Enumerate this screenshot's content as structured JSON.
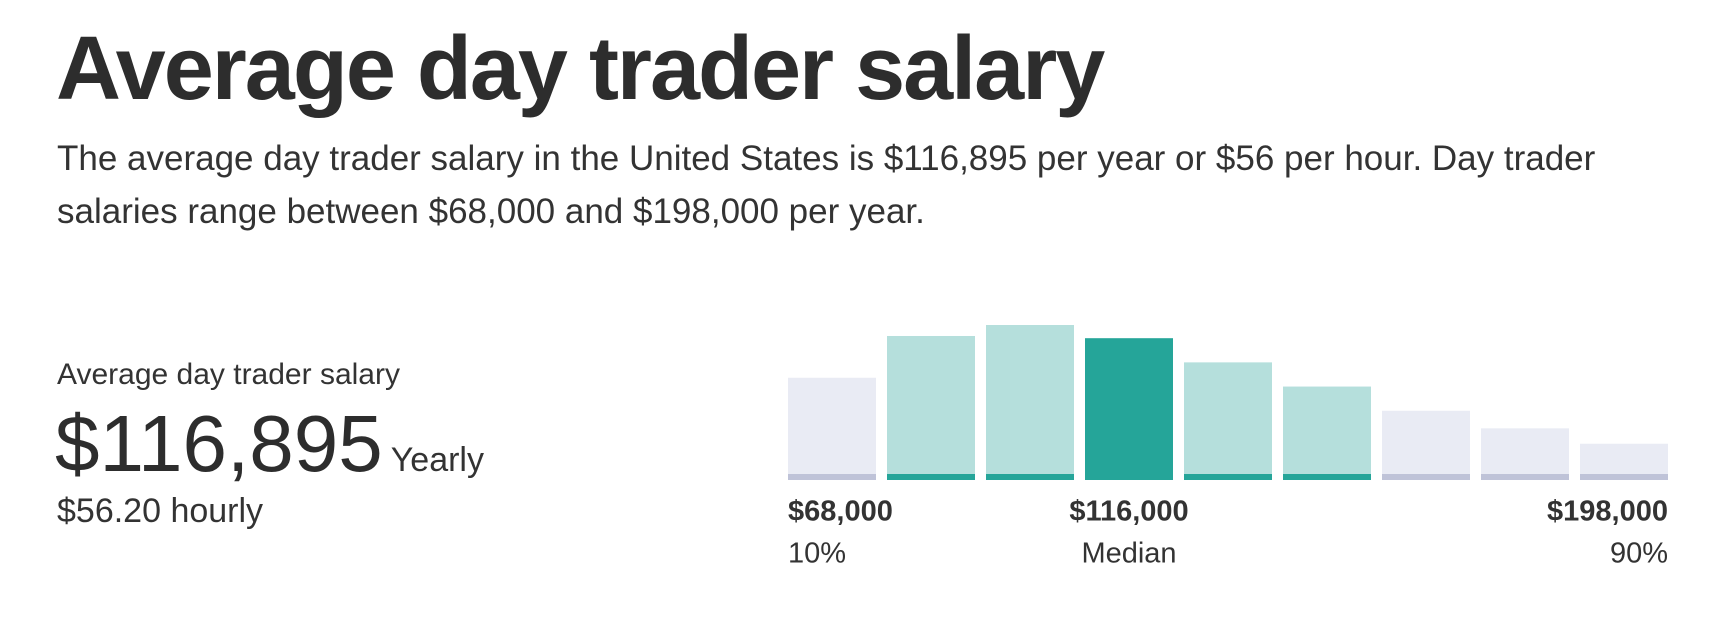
{
  "header": {
    "title": "Average day trader salary",
    "description": "The average day trader salary in the United States is $116,895 per year or $56 per hour. Day trader salaries range between $68,000 and $198,000 per year."
  },
  "summary": {
    "label": "Average day trader salary",
    "amount": "$116,895",
    "period": "Yearly",
    "hourly": "$56.20 hourly"
  },
  "chart_data": {
    "type": "bar",
    "values": [
      93,
      131,
      141,
      129,
      107,
      85,
      63,
      47,
      33
    ],
    "colors": [
      "#e9ebf4",
      "#b5dfdc",
      "#b5dfdc",
      "#25a599",
      "#b5dfdc",
      "#b5dfdc",
      "#e9ebf4",
      "#e9ebf4",
      "#e9ebf4"
    ],
    "base_colors": [
      "#bfc3d8",
      "#25a599",
      "#25a599",
      "#25a599",
      "#25a599",
      "#25a599",
      "#bfc3d8",
      "#bfc3d8",
      "#bfc3d8"
    ],
    "markers": [
      {
        "value": "$68,000",
        "label": "10%"
      },
      {
        "value": "$116,000",
        "label": "Median"
      },
      {
        "value": "$198,000",
        "label": "90%"
      }
    ]
  }
}
